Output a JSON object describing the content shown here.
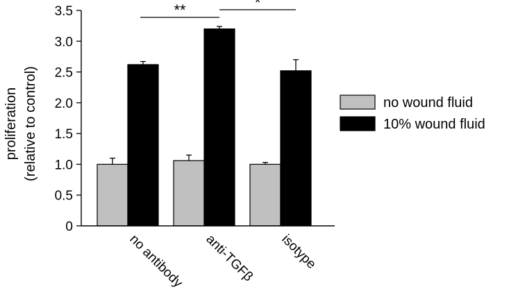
{
  "chart_data": {
    "type": "bar",
    "title": "",
    "xlabel": "",
    "ylabel_lines": [
      "proliferation",
      "(relative to control)"
    ],
    "ylim": [
      0,
      3.5
    ],
    "yticks": [
      "0",
      "0.5",
      "1.0",
      "1.5",
      "2.0",
      "2.5",
      "3.0",
      "3.5"
    ],
    "ytick_values": [
      0,
      0.5,
      1.0,
      1.5,
      2.0,
      2.5,
      3.0,
      3.5
    ],
    "categories": [
      "no antibody",
      "anti-TGFβ",
      "isotype"
    ],
    "series": [
      {
        "name": "no wound fluid",
        "color": "#c0c0c0",
        "values": [
          1.0,
          1.06,
          1.0
        ],
        "errors": [
          0.1,
          0.09,
          0.03
        ]
      },
      {
        "name": "10% wound fluid",
        "color": "#000000",
        "values": [
          2.62,
          3.2,
          2.52
        ],
        "errors": [
          0.05,
          0.04,
          0.18
        ]
      }
    ],
    "legend_position": "right",
    "significance": [
      {
        "label": "**",
        "from_category": 0,
        "to_category": 1
      },
      {
        "label": "*",
        "from_category": 1,
        "to_category": 2
      }
    ]
  }
}
